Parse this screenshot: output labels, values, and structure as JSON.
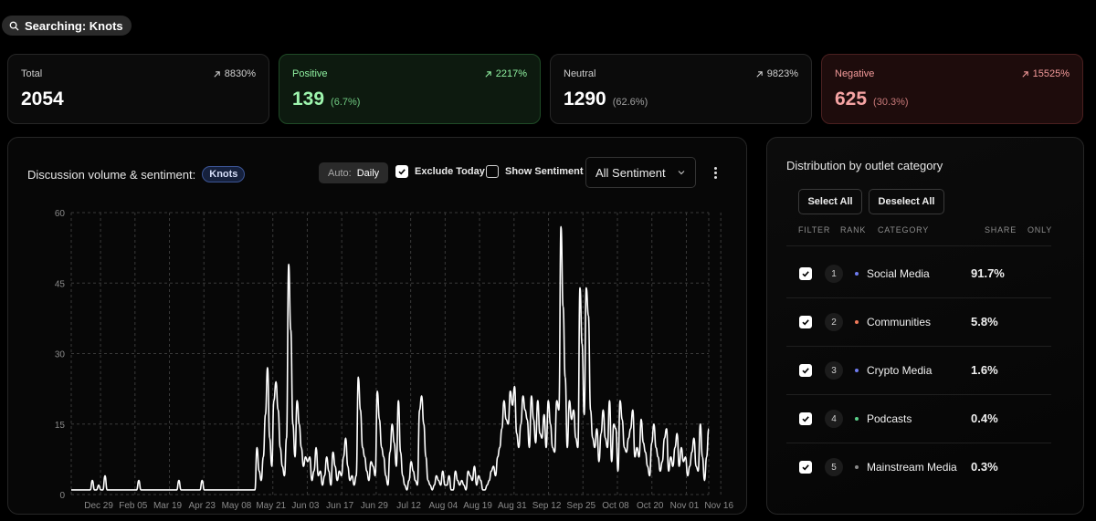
{
  "search": {
    "label": "Searching: Knots"
  },
  "stats": [
    {
      "label": "Total",
      "value": "2054",
      "pct": "",
      "change": "8830%"
    },
    {
      "label": "Positive",
      "value": "139",
      "pct": "(6.7%)",
      "change": "2217%"
    },
    {
      "label": "Neutral",
      "value": "1290",
      "pct": "(62.6%)",
      "change": "9823%"
    },
    {
      "label": "Negative",
      "value": "625",
      "pct": "(30.3%)",
      "change": "15525%"
    }
  ],
  "volume_panel": {
    "title": "Discussion volume & sentiment:",
    "tag": "Knots",
    "auto_key": "Auto:",
    "auto_value": "Daily",
    "exclude_today": {
      "label": "Exclude Today",
      "checked": true
    },
    "show_sentiment": {
      "label": "Show Sentiment",
      "checked": false
    },
    "sentiment_select": "All Sentiment"
  },
  "chart_data": {
    "type": "line",
    "title": "Discussion volume & sentiment: Knots",
    "ylim": [
      0,
      60
    ],
    "yticks": [
      "0",
      "15",
      "30",
      "45",
      "60"
    ],
    "xticks": [
      "Dec 29",
      "Feb 05",
      "Mar 19",
      "Apr 23",
      "May 08",
      "May 21",
      "Jun 03",
      "Jun 17",
      "Jun 29",
      "Jul 12",
      "Aug 04",
      "Aug 19",
      "Aug 31",
      "Sep 12",
      "Sep 25",
      "Oct 08",
      "Oct 20",
      "Nov 01",
      "Nov 16"
    ],
    "grid": true,
    "series": [
      {
        "values": [
          1,
          1,
          1,
          1,
          1,
          1,
          1,
          1,
          1,
          1,
          3,
          1,
          1,
          2,
          1,
          1,
          4,
          1,
          1,
          1,
          1,
          1,
          1,
          1,
          1,
          1,
          1,
          1,
          1,
          1,
          1,
          1,
          3,
          1,
          1,
          1,
          1,
          1,
          1,
          1,
          1,
          1,
          1,
          1,
          1,
          1,
          1,
          1,
          1,
          1,
          1,
          3,
          1,
          1,
          1,
          1,
          1,
          1,
          1,
          1,
          1,
          1,
          3,
          1,
          1,
          1,
          1,
          1,
          1,
          1,
          1,
          1,
          1,
          1,
          1,
          1,
          1,
          1,
          1,
          1,
          1,
          1,
          1,
          1,
          1,
          1,
          1,
          1,
          10,
          5,
          3,
          8,
          17,
          27,
          12,
          6,
          20,
          24,
          18,
          10,
          6,
          4,
          12,
          49,
          35,
          15,
          8,
          20,
          15,
          10,
          6,
          8,
          7,
          8,
          3,
          5,
          10,
          4,
          5,
          2,
          4,
          8,
          5,
          2,
          9,
          6,
          3,
          5,
          4,
          8,
          12,
          6,
          3,
          4,
          2,
          4,
          25,
          18,
          10,
          8,
          5,
          3,
          7,
          6,
          4,
          22,
          16,
          10,
          8,
          4,
          2,
          9,
          15,
          11,
          6,
          20,
          9,
          4,
          2,
          1,
          3,
          7,
          5,
          3,
          2,
          18,
          21,
          15,
          8,
          3,
          2,
          1,
          2,
          4,
          3,
          2,
          5,
          2,
          2,
          4,
          1,
          1,
          5,
          3,
          2,
          3,
          2,
          1,
          5,
          4,
          3,
          6,
          2,
          4,
          3,
          1,
          1,
          2,
          3,
          5,
          6,
          4,
          8,
          10,
          14,
          20,
          16,
          15,
          22,
          19,
          23,
          13,
          10,
          15,
          21,
          18,
          16,
          10,
          21,
          16,
          11,
          20,
          13,
          12,
          17,
          10,
          20,
          15,
          10,
          9,
          20,
          18,
          57,
          40,
          25,
          10,
          20,
          16,
          18,
          12,
          10,
          44,
          32,
          17,
          44,
          38,
          18,
          12,
          10,
          14,
          7,
          13,
          18,
          12,
          10,
          20,
          7,
          15,
          14,
          5,
          20,
          16,
          10,
          9,
          12,
          14,
          18,
          8,
          10,
          8,
          16,
          11,
          9,
          6,
          4,
          11,
          15,
          10,
          8,
          5,
          7,
          12,
          14,
          5,
          8,
          6,
          10,
          13,
          6,
          10,
          7,
          8,
          4,
          6,
          9,
          12,
          6,
          5,
          15,
          8,
          3,
          8,
          14
        ]
      }
    ]
  },
  "distribution": {
    "title": "Distribution by outlet category",
    "select_all": "Select All",
    "deselect_all": "Deselect All",
    "headers": {
      "filter": "FILTER",
      "rank": "RANK",
      "category": "CATEGORY",
      "share": "SHARE",
      "only": "ONLY"
    },
    "rows": [
      {
        "rank": "1",
        "category": "Social Media",
        "share": "91.7%",
        "dot": "#6f7cf0"
      },
      {
        "rank": "2",
        "category": "Communities",
        "share": "5.8%",
        "dot": "#f07a5a"
      },
      {
        "rank": "3",
        "category": "Crypto Media",
        "share": "1.6%",
        "dot": "#6f7cf0"
      },
      {
        "rank": "4",
        "category": "Podcasts",
        "share": "0.4%",
        "dot": "#5bd08a"
      },
      {
        "rank": "5",
        "category": "Mainstream Media",
        "share": "0.3%",
        "dot": "#8a8a8a"
      }
    ]
  }
}
